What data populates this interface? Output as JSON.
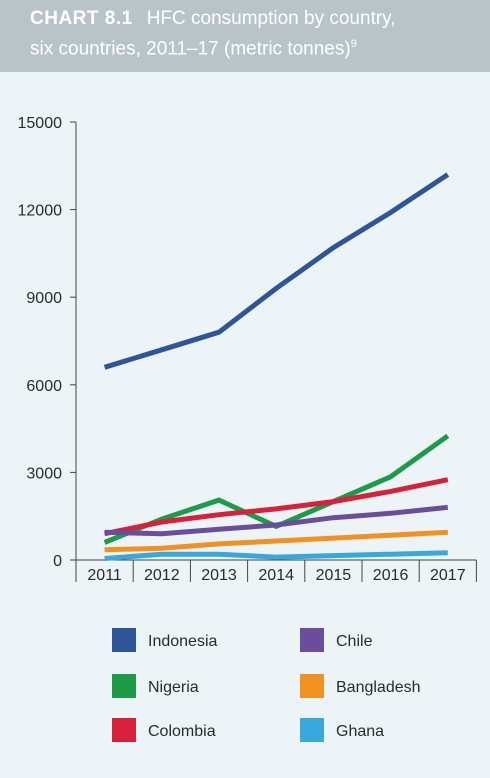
{
  "header": {
    "label": "CHART 8.1",
    "title_line1": "HFC consumption by country,",
    "title_line2": "six countries, 2011–17 (metric tonnes)",
    "footnote": "9"
  },
  "chart_data": {
    "type": "line",
    "title": "HFC consumption by country, six countries, 2011–17 (metric tonnes)",
    "xlabel": "",
    "ylabel": "",
    "x": [
      "2011",
      "2012",
      "2013",
      "2014",
      "2015",
      "2016",
      "2017"
    ],
    "ylim": [
      0,
      15000
    ],
    "yticks": [
      0,
      3000,
      6000,
      9000,
      12000,
      15000
    ],
    "grid": false,
    "legend_position": "bottom",
    "series": [
      {
        "name": "Indonesia",
        "color": "#2e5597",
        "values": [
          6600,
          7200,
          7800,
          9300,
          10700,
          11900,
          13200
        ]
      },
      {
        "name": "Nigeria",
        "color": "#1e9b48",
        "values": [
          600,
          1400,
          2050,
          1150,
          2000,
          2850,
          4250
        ]
      },
      {
        "name": "Colombia",
        "color": "#d6203c",
        "values": [
          900,
          1300,
          1550,
          1750,
          2000,
          2350,
          2750
        ]
      },
      {
        "name": "Chile",
        "color": "#6b4e9b",
        "values": [
          950,
          900,
          1050,
          1200,
          1450,
          1600,
          1800
        ]
      },
      {
        "name": "Bangladesh",
        "color": "#f19121",
        "values": [
          350,
          400,
          550,
          650,
          750,
          850,
          950
        ]
      },
      {
        "name": "Ghana",
        "color": "#3aa8dc",
        "values": [
          50,
          200,
          200,
          100,
          150,
          200,
          250
        ]
      }
    ]
  }
}
